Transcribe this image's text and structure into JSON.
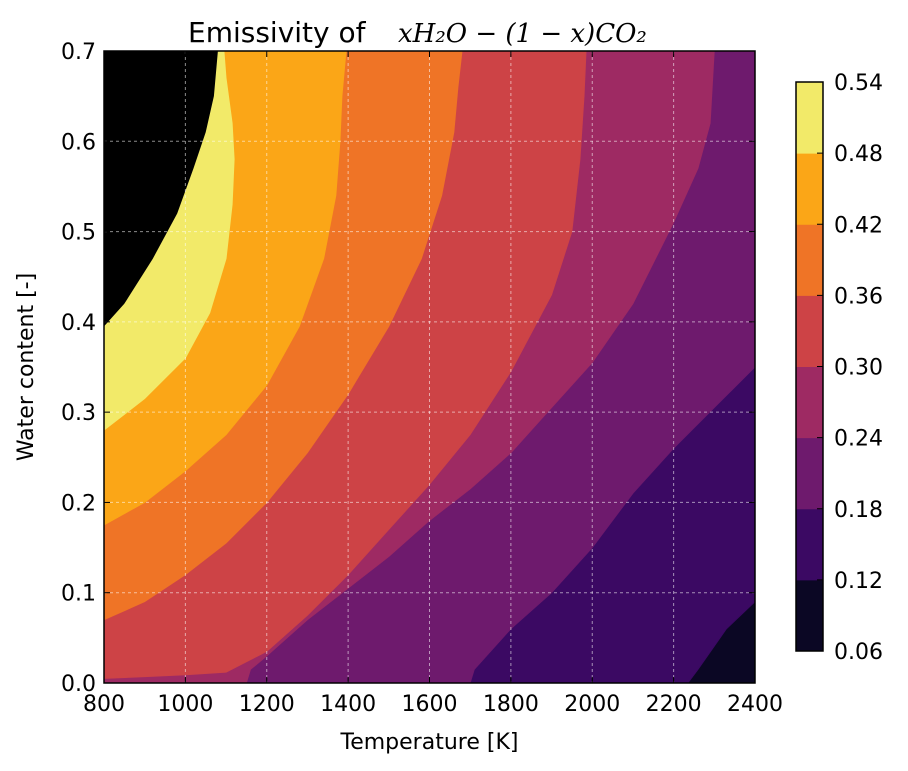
{
  "chart_data": {
    "type": "heatmap",
    "subtype": "filled-contour",
    "title": "Emissivity of",
    "title_math": "xH₂O − (1 − x)CO₂",
    "xlabel": "Temperature [K]",
    "ylabel": "Water content [-]",
    "xlim": [
      800,
      2400
    ],
    "ylim": [
      0.0,
      0.7
    ],
    "x_ticks": [
      "800",
      "1000",
      "1200",
      "1400",
      "1600",
      "1800",
      "2000",
      "2200",
      "2400"
    ],
    "y_ticks": [
      "0.0",
      "0.1",
      "0.2",
      "0.3",
      "0.4",
      "0.5",
      "0.6",
      "0.7"
    ],
    "grid": true,
    "colormap": "inferno",
    "colorbar": {
      "levels": [
        0.06,
        0.12,
        0.18,
        0.24,
        0.3,
        0.36,
        0.42,
        0.48,
        0.54
      ],
      "tick_labels": [
        "0.06",
        "0.12",
        "0.18",
        "0.24",
        "0.30",
        "0.36",
        "0.42",
        "0.48",
        "0.54"
      ],
      "colors": [
        "#0b0724",
        "#3b0963",
        "#6e1a6d",
        "#9e2a63",
        "#cd4346",
        "#ef7426",
        "#fba617",
        "#f2ea69"
      ]
    },
    "contour_boundaries": [
      {
        "level": 0.12,
        "points": [
          [
            2235,
            0.0
          ],
          [
            2260,
            0.015
          ],
          [
            2330,
            0.06
          ],
          [
            2400,
            0.09
          ]
        ]
      },
      {
        "level": 0.18,
        "points": [
          [
            1700,
            0.0
          ],
          [
            1710,
            0.015
          ],
          [
            1800,
            0.06
          ],
          [
            1900,
            0.1
          ],
          [
            2000,
            0.15
          ],
          [
            2100,
            0.21
          ],
          [
            2200,
            0.26
          ],
          [
            2300,
            0.305
          ],
          [
            2400,
            0.35
          ]
        ]
      },
      {
        "level": 0.24,
        "points": [
          [
            1150,
            0.0
          ],
          [
            1160,
            0.015
          ],
          [
            1200,
            0.03
          ],
          [
            1300,
            0.07
          ],
          [
            1400,
            0.105
          ],
          [
            1500,
            0.14
          ],
          [
            1600,
            0.18
          ],
          [
            1700,
            0.215
          ],
          [
            1800,
            0.255
          ],
          [
            1900,
            0.305
          ],
          [
            2000,
            0.355
          ],
          [
            2100,
            0.42
          ],
          [
            2200,
            0.51
          ],
          [
            2260,
            0.57
          ],
          [
            2290,
            0.62
          ],
          [
            2300,
            0.7
          ]
        ]
      },
      {
        "level": 0.3,
        "points": [
          [
            800,
            0.005
          ],
          [
            900,
            0.007
          ],
          [
            1000,
            0.009
          ],
          [
            1100,
            0.012
          ],
          [
            1200,
            0.035
          ],
          [
            1300,
            0.075
          ],
          [
            1400,
            0.12
          ],
          [
            1500,
            0.17
          ],
          [
            1600,
            0.22
          ],
          [
            1700,
            0.275
          ],
          [
            1800,
            0.345
          ],
          [
            1900,
            0.43
          ],
          [
            1950,
            0.5
          ],
          [
            1970,
            0.58
          ],
          [
            1980,
            0.65
          ],
          [
            1985,
            0.7
          ]
        ]
      },
      {
        "level": 0.36,
        "points": [
          [
            800,
            0.07
          ],
          [
            900,
            0.09
          ],
          [
            1000,
            0.12
          ],
          [
            1100,
            0.155
          ],
          [
            1200,
            0.2
          ],
          [
            1300,
            0.255
          ],
          [
            1400,
            0.32
          ],
          [
            1500,
            0.395
          ],
          [
            1580,
            0.47
          ],
          [
            1630,
            0.54
          ],
          [
            1660,
            0.61
          ],
          [
            1670,
            0.66
          ],
          [
            1680,
            0.7
          ]
        ]
      },
      {
        "level": 0.42,
        "points": [
          [
            800,
            0.175
          ],
          [
            900,
            0.2
          ],
          [
            1000,
            0.235
          ],
          [
            1100,
            0.275
          ],
          [
            1200,
            0.33
          ],
          [
            1280,
            0.395
          ],
          [
            1340,
            0.47
          ],
          [
            1370,
            0.54
          ],
          [
            1380,
            0.6
          ],
          [
            1385,
            0.65
          ],
          [
            1395,
            0.7
          ]
        ]
      },
      {
        "level": 0.48,
        "points": [
          [
            800,
            0.28
          ],
          [
            900,
            0.315
          ],
          [
            1000,
            0.36
          ],
          [
            1060,
            0.41
          ],
          [
            1100,
            0.47
          ],
          [
            1115,
            0.53
          ],
          [
            1120,
            0.58
          ],
          [
            1115,
            0.62
          ],
          [
            1100,
            0.67
          ],
          [
            1095,
            0.7
          ]
        ]
      },
      {
        "level": 0.54,
        "points": [
          [
            800,
            0.395
          ],
          [
            850,
            0.42
          ],
          [
            920,
            0.47
          ],
          [
            980,
            0.52
          ],
          [
            1020,
            0.57
          ],
          [
            1050,
            0.61
          ],
          [
            1070,
            0.65
          ],
          [
            1080,
            0.7
          ]
        ]
      }
    ]
  }
}
